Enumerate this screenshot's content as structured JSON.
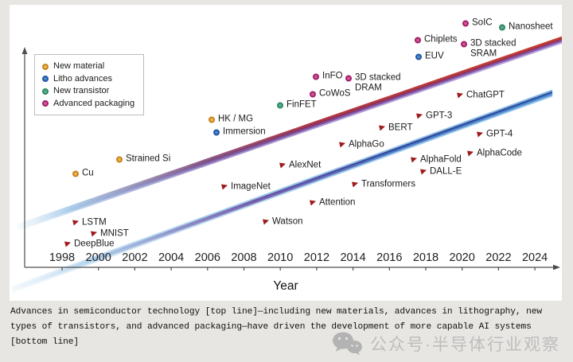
{
  "watermark": {
    "text": "公众号·半导体行业观察"
  },
  "caption": {
    "lines": [
      "Advances in semiconductor technology [top line]—including new materials, advances in lithography, new",
      "types of transistors, and advanced packaging—have driven the development of more capable AI systems",
      "[bottom line]"
    ]
  },
  "legend": {
    "items": [
      {
        "label": "New material",
        "category": "material"
      },
      {
        "label": "Litho advances",
        "category": "litho"
      },
      {
        "label": "New transistor",
        "category": "transistor"
      },
      {
        "label": "Advanced packaging",
        "category": "packaging"
      }
    ]
  },
  "colors": {
    "categories": {
      "material": {
        "fill": "#f0b447",
        "ring": "#c5831e"
      },
      "litho": {
        "fill": "#4c86cc",
        "ring": "#2257a5"
      },
      "transistor": {
        "fill": "#57b08d",
        "ring": "#2f8763"
      },
      "packaging": {
        "fill": "#d4549a",
        "ring": "#a01f66"
      }
    },
    "ai_flag": "#9e1b1e",
    "axis": "#4d4d4d",
    "semiconductor_ribbon": [
      "#c7402d",
      "#9b3055",
      "#8457ab",
      "#b7a6dc"
    ],
    "ai_ribbon": [
      "#7fb6e2",
      "#2e4f9e",
      "#4f8fd2",
      "#93c4ea"
    ],
    "ribbon_fade_left": "#cde3f4"
  },
  "chart_data": {
    "type": "scatter",
    "title": "",
    "xlabel": "Year",
    "ylabel": "",
    "x_ticks": [
      1998,
      2000,
      2002,
      2004,
      2006,
      2008,
      2010,
      2012,
      2014,
      2016,
      2018,
      2020,
      2022,
      2024
    ],
    "x_range": [
      1997,
      2025
    ],
    "y_axis": "unlabeled capability/progress scale (no ticks)",
    "grid": false,
    "legend_position": "upper-left",
    "series": [
      {
        "name": "Semiconductor technology advances (top line)",
        "style": "rising ribbon, light blue fading into red/purple",
        "points": [
          {
            "label": "Cu",
            "category": "material",
            "year": 1999,
            "px": [
              95,
              218
            ]
          },
          {
            "label": "Strained Si",
            "category": "material",
            "year": 2001,
            "px": [
              150,
              200
            ]
          },
          {
            "label": "HK / MG",
            "category": "material",
            "year": 2006,
            "px": [
              266,
              150
            ]
          },
          {
            "label": "Immersion",
            "category": "litho",
            "year": 2007,
            "px": [
              272,
              166
            ]
          },
          {
            "label": "FinFET",
            "category": "transistor",
            "year": 2010,
            "px": [
              352,
              132
            ]
          },
          {
            "label": "CoWoS",
            "category": "packaging",
            "year": 2012,
            "px": [
              393,
              118
            ]
          },
          {
            "label": "InFO",
            "category": "packaging",
            "year": 2012,
            "px": [
              397,
              96
            ]
          },
          {
            "label": "3D stacked\nDRAM",
            "category": "packaging",
            "year": 2014,
            "px": [
              438,
              98
            ]
          },
          {
            "label": "EUV",
            "category": "litho",
            "year": 2018,
            "px": [
              526,
              71
            ]
          },
          {
            "label": "Chiplets",
            "category": "packaging",
            "year": 2018,
            "px": [
              525,
              50
            ]
          },
          {
            "label": "3D stacked\nSRAM",
            "category": "packaging",
            "year": 2020,
            "px": [
              583,
              55
            ]
          },
          {
            "label": "SoIC",
            "category": "packaging",
            "year": 2020,
            "px": [
              585,
              29
            ]
          },
          {
            "label": "Nanosheet",
            "category": "transistor",
            "year": 2022,
            "px": [
              631,
              34
            ]
          }
        ]
      },
      {
        "name": "AI systems (bottom line)",
        "style": "rising ribbon, light blue fading into blue/purple",
        "points": [
          {
            "label": "DeepBlue",
            "year": 1998,
            "px": [
              85,
              307
            ]
          },
          {
            "label": "LSTM",
            "year": 1999,
            "px": [
              95,
              280
            ]
          },
          {
            "label": "MNIST",
            "year": 2000,
            "px": [
              118,
              294
            ]
          },
          {
            "label": "ImageNet",
            "year": 2007,
            "px": [
              282,
              235
            ]
          },
          {
            "label": "Watson",
            "year": 2009,
            "px": [
              334,
              279
            ]
          },
          {
            "label": "AlexNet",
            "year": 2010,
            "px": [
              355,
              208
            ]
          },
          {
            "label": "Attention",
            "year": 2012,
            "px": [
              393,
              255
            ]
          },
          {
            "label": "AlphaGo",
            "year": 2013,
            "px": [
              430,
              182
            ]
          },
          {
            "label": "Transformers",
            "year": 2014,
            "px": [
              446,
              232
            ]
          },
          {
            "label": "BERT",
            "year": 2016,
            "px": [
              480,
              161
            ]
          },
          {
            "label": "AlphaFold",
            "year": 2017,
            "px": [
              520,
              201
            ]
          },
          {
            "label": "GPT-3",
            "year": 2018,
            "px": [
              527,
              146
            ]
          },
          {
            "label": "DALL-E",
            "year": 2018,
            "px": [
              532,
              216
            ]
          },
          {
            "label": "ChatGPT",
            "year": 2020,
            "px": [
              578,
              120
            ]
          },
          {
            "label": "AlphaCode",
            "year": 2020,
            "px": [
              591,
              193
            ]
          },
          {
            "label": "GPT-4",
            "year": 2021,
            "px": [
              603,
              169
            ]
          }
        ]
      }
    ]
  }
}
